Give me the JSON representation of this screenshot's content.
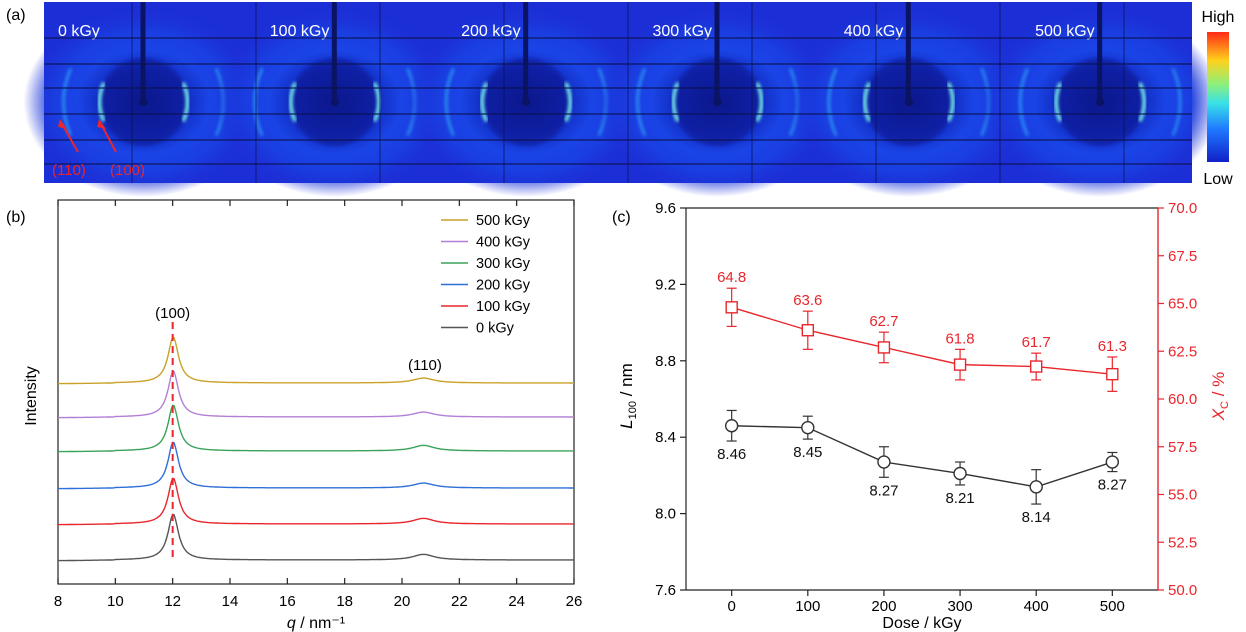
{
  "panel_a": {
    "label": "(a)",
    "doses": [
      "0 kGy",
      "100 kGy",
      "200 kGy",
      "300 kGy",
      "400 kGy",
      "500 kGy"
    ],
    "annotations": [
      "(110)",
      "(100)"
    ],
    "colorbar": {
      "high": "High",
      "low": "Low"
    },
    "colors": {
      "annotation": "#e8262c",
      "background": "#1c2fd6",
      "ring_peak": "#7fffe8"
    }
  },
  "chart_data": [
    {
      "panel": "(b)",
      "type": "line",
      "xlabel": "q / nm⁻¹",
      "xlabel_main": "q",
      "xlabel_unit": " / nm⁻¹",
      "ylabel": "Intensity",
      "xlim": [
        8,
        26
      ],
      "xticks": [
        8,
        10,
        12,
        14,
        16,
        18,
        20,
        22,
        24,
        26
      ],
      "peak_labels": [
        {
          "text": "(100)",
          "x": 12.0
        },
        {
          "text": "(110)",
          "x": 20.8
        }
      ],
      "peak_line_x": 12.0,
      "peak_line_color": "#e8262c",
      "series": [
        {
          "name": "500 kGy",
          "color": "#c9a227",
          "peak100": 1.0,
          "peak110": 0.7
        },
        {
          "name": "400 kGy",
          "color": "#b27fd6",
          "peak100": 1.0,
          "peak110": 0.7
        },
        {
          "name": "300 kGy",
          "color": "#3aa35a",
          "peak100": 1.0,
          "peak110": 0.8
        },
        {
          "name": "200 kGy",
          "color": "#2f6fd8",
          "peak100": 1.0,
          "peak110": 0.7
        },
        {
          "name": "100 kGy",
          "color": "#e8262c",
          "peak100": 1.0,
          "peak110": 0.8
        },
        {
          "name": "0 kGy",
          "color": "#555555",
          "peak100": 1.0,
          "peak110": 0.8
        }
      ],
      "legend_position": "top-right"
    },
    {
      "panel": "(c)",
      "type": "line",
      "xlabel": "Dose / kGy",
      "x": [
        0,
        100,
        200,
        300,
        400,
        500
      ],
      "xlim": [
        -60,
        560
      ],
      "xticks": [
        0,
        100,
        200,
        300,
        400,
        500
      ],
      "ylabel_left": "L100 / nm",
      "ylabel_left_main": "L",
      "ylabel_left_sub": "100",
      "ylabel_left_unit": " / nm",
      "ylim_left": [
        7.6,
        9.6
      ],
      "yticks_left": [
        "7.6",
        "8.0",
        "8.4",
        "8.8",
        "9.2",
        "9.6"
      ],
      "ylabel_right": "XC / %",
      "ylabel_right_main": "X",
      "ylabel_right_sub": "C",
      "ylabel_right_unit": " / %",
      "ylim_right": [
        50.0,
        70.0
      ],
      "yticks_right": [
        "50.0",
        "52.5",
        "55.0",
        "57.5",
        "60.0",
        "62.5",
        "65.0",
        "67.5",
        "70.0"
      ],
      "series": [
        {
          "axis": "left",
          "marker": "circle",
          "color": "#333333",
          "values": [
            8.46,
            8.45,
            8.27,
            8.21,
            8.14,
            8.27
          ],
          "errors": [
            0.08,
            0.06,
            0.08,
            0.06,
            0.09,
            0.05
          ],
          "labels": [
            "8.46",
            "8.45",
            "8.27",
            "8.21",
            "8.14",
            "8.27"
          ]
        },
        {
          "axis": "right",
          "marker": "square",
          "color": "#e8262c",
          "values": [
            64.8,
            63.6,
            62.7,
            61.8,
            61.7,
            61.3
          ],
          "errors": [
            1.0,
            1.0,
            0.8,
            0.8,
            0.7,
            0.9
          ],
          "labels": [
            "64.8",
            "63.6",
            "62.7",
            "61.8",
            "61.7",
            "61.3"
          ]
        }
      ]
    }
  ]
}
